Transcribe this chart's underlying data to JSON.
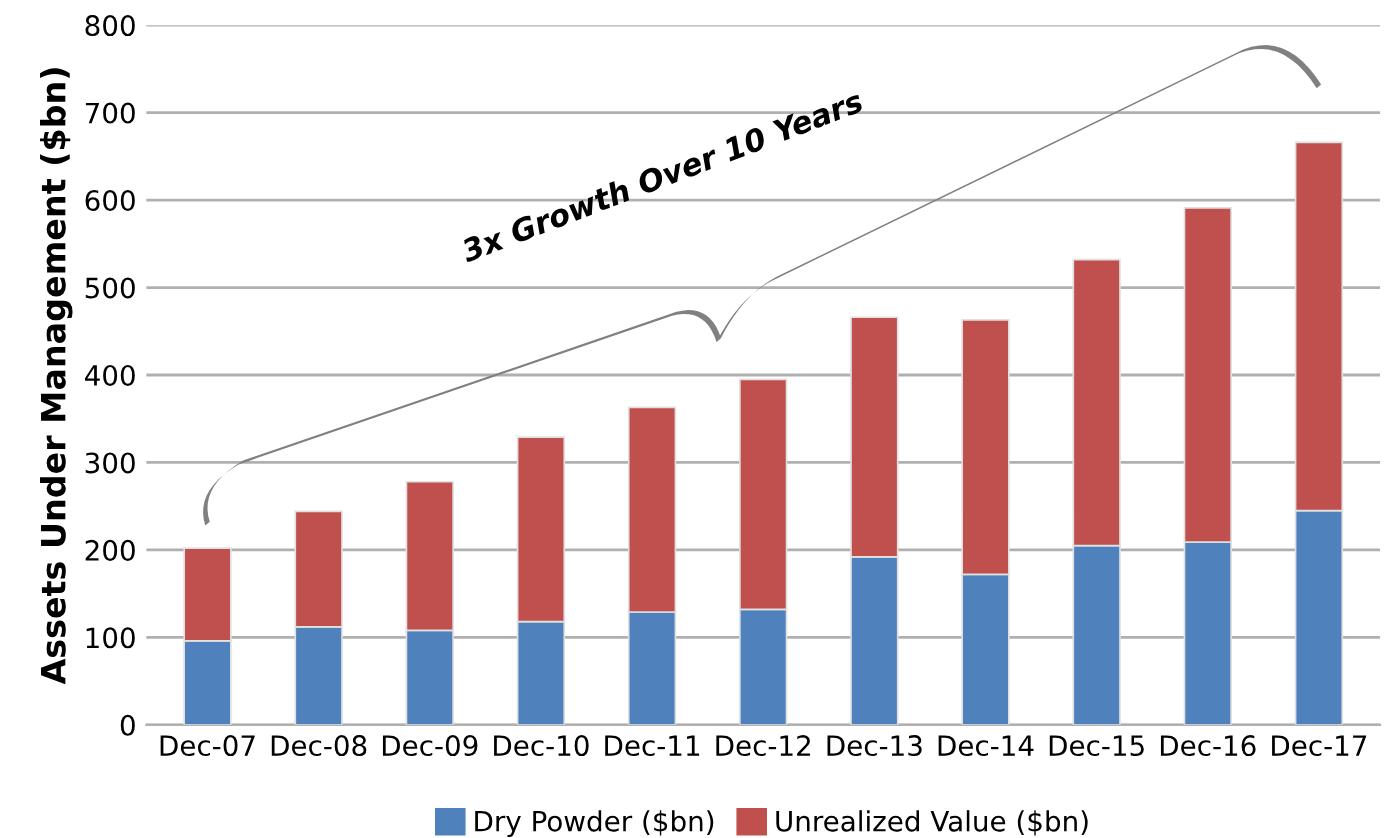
{
  "chart_data": {
    "type": "bar",
    "stacked": true,
    "ylabel": "Assets Under Management ($bn)",
    "categories": [
      "Dec-07",
      "Dec-08",
      "Dec-09",
      "Dec-10",
      "Dec-11",
      "Dec-12",
      "Dec-13",
      "Dec-14",
      "Dec-15",
      "Dec-16",
      "Dec-17"
    ],
    "series": [
      {
        "name": "Dry Powder ($bn)",
        "color": "#4f81bd",
        "values": [
          96,
          112,
          108,
          118,
          129,
          132,
          192,
          172,
          205,
          209,
          245
        ]
      },
      {
        "name": "Unrealized Value ($bn)",
        "color": "#c0504d",
        "values": [
          106,
          132,
          170,
          211,
          234,
          263,
          274,
          291,
          327,
          382,
          421
        ]
      }
    ],
    "ylim": [
      0,
      800
    ],
    "yticks": [
      0,
      100,
      200,
      300,
      400,
      500,
      600,
      700,
      800
    ],
    "grid": "y",
    "legend": "bottom",
    "annotations": [
      "3x Growth Over 10 Years"
    ]
  }
}
